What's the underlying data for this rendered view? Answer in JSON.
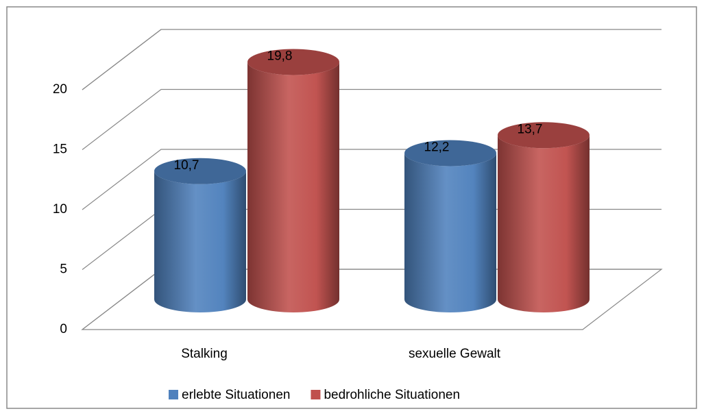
{
  "chart_data": {
    "type": "bar3d-cylinder",
    "categories": [
      "Stalking",
      "sexuelle Gewalt"
    ],
    "series": [
      {
        "name": "erlebte Situationen",
        "color": "#4f81bd",
        "values": [
          10.7,
          12.2
        ],
        "value_labels": [
          "10,7",
          "12,2"
        ]
      },
      {
        "name": "bedrohliche Situationen",
        "color": "#c0504d",
        "values": [
          19.8,
          13.7
        ],
        "value_labels": [
          "19,8",
          "13,7"
        ]
      }
    ],
    "ylim": [
      0,
      20
    ],
    "yticks": [
      0,
      5,
      10,
      15,
      20
    ],
    "grid": true,
    "legend": "bottom"
  }
}
